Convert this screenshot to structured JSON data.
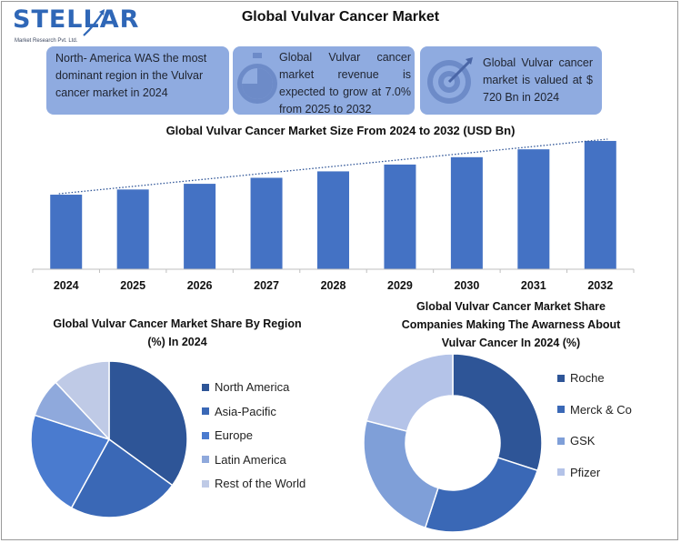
{
  "logo": {
    "wordmark": "STELLAR",
    "tagline": "Market Research Pvt. Ltd."
  },
  "title": "Global Vulvar Cancer Market",
  "info_boxes": [
    {
      "text": "North- America WAS the most dominant region in the Vulvar cancer market in 2024",
      "icon": "none"
    },
    {
      "text": "Global Vulvar cancer market revenue is expected to grow at 7.0% from 2025 to 2032",
      "icon": "stopwatch-icon"
    },
    {
      "text": "Global Vulvar cancer market is valued at $ 720 Bn in 2024",
      "icon": "target-icon"
    }
  ],
  "colors": {
    "bar": "#4472c4",
    "trend": "#2f5597",
    "box": "#8fabe0",
    "logo": "#2f67b7"
  },
  "chart_data": [
    {
      "type": "bar",
      "title": "Global Vulvar Cancer Market Size From 2024 to 2032 (USD Bn)",
      "categories": [
        "2024",
        "2025",
        "2026",
        "2027",
        "2028",
        "2029",
        "2030",
        "2031",
        "2032"
      ],
      "values": [
        720,
        770,
        825,
        883,
        945,
        1011,
        1082,
        1158,
        1239
      ],
      "ylim": [
        0,
        1300
      ],
      "trendline": true,
      "grid": false
    },
    {
      "type": "pie",
      "title": "Global Vulvar Cancer Market Share By Region (%) In 2024",
      "labels": [
        "North America",
        "Asia-Pacific",
        "Europe",
        "Latin America",
        "Rest of the World"
      ],
      "values": [
        35,
        23,
        22,
        8,
        12
      ],
      "colors": [
        "#2e5597",
        "#3a68b6",
        "#4a7bcf",
        "#8fa9dc",
        "#bfcae6"
      ],
      "legend_position": "right"
    },
    {
      "type": "donut",
      "title": "Global Vulvar Cancer Market Share Companies Making The Awarness About Vulvar Cancer In 2024 (%)",
      "labels": [
        "Roche",
        "Merck & Co",
        "GSK",
        "Pfizer"
      ],
      "values": [
        30,
        25,
        24,
        21
      ],
      "colors": [
        "#2e5597",
        "#3a68b6",
        "#7f9fd8",
        "#b4c3e8"
      ],
      "legend_position": "right"
    }
  ]
}
